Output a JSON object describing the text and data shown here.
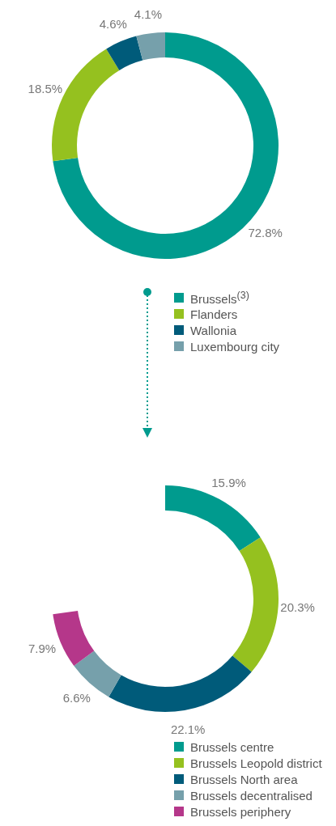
{
  "chart_data": [
    {
      "type": "donut",
      "categories": [
        "Brussels$^{(3)}$",
        "Flanders",
        "Wallonia",
        "Luxembourg city"
      ],
      "values": [
        72.8,
        18.5,
        4.6,
        4.1
      ],
      "colors": [
        "#009b8e",
        "#95c11f",
        "#005b7a",
        "#76a0ab"
      ],
      "value_labels": [
        "72.8%",
        "18.5%",
        "4.6%",
        "4.1%"
      ],
      "legend": "bottom"
    },
    {
      "type": "donut",
      "categories": [
        "Brussels centre",
        "Brussels Leopold district",
        "Brussels North area",
        "Brussels decentralised",
        "Brussels periphery"
      ],
      "values": [
        15.9,
        20.3,
        22.1,
        6.6,
        7.9
      ],
      "colors": [
        "#009b8e",
        "#95c11f",
        "#005b7a",
        "#76a0ab",
        "#b5378a"
      ],
      "value_labels": [
        "15.9%",
        "20.3%",
        "22.1%",
        "6.6%",
        "7.9%"
      ],
      "legend": "bottom"
    }
  ]
}
